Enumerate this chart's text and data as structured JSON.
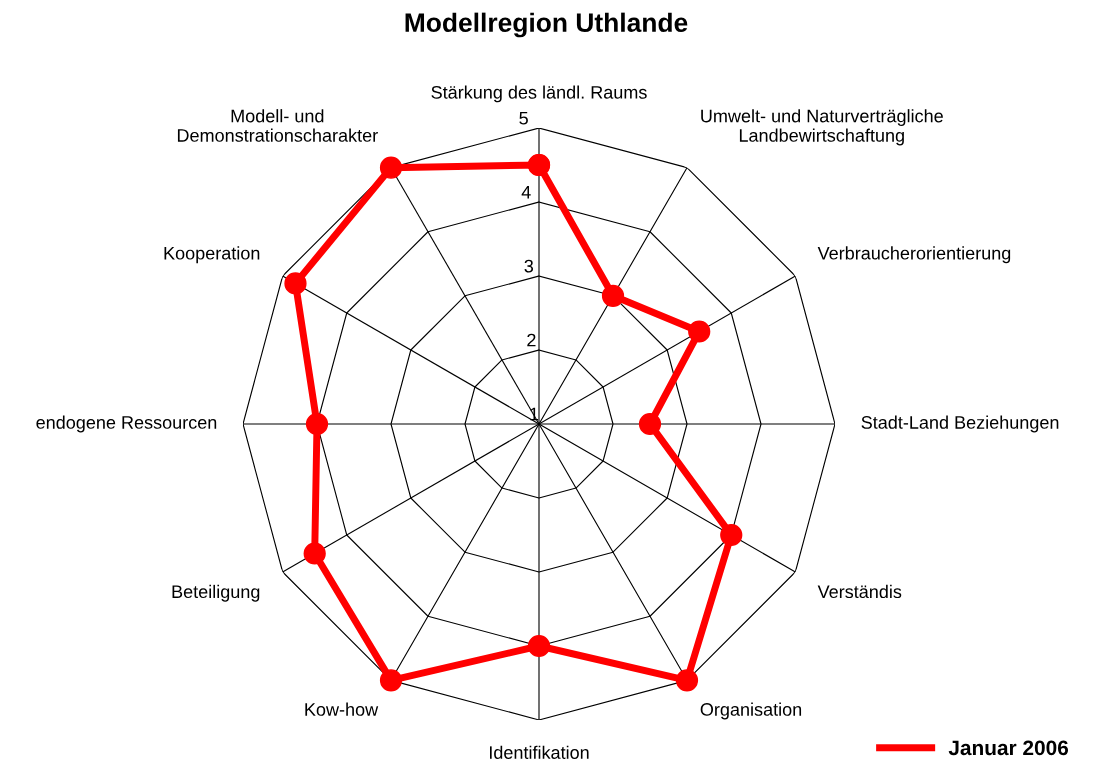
{
  "chart_data": {
    "type": "radar",
    "title": "Modellregion Uthlande",
    "categories": [
      "Stärkung des ländl. Raums",
      "Umwelt- und Naturverträgliche\nLandbewirtschaftung",
      "Verbraucherorientierung",
      "Stadt-Land Beziehungen",
      "Verständis",
      "Organisation",
      "Identifikation",
      "Kow-how",
      "Beteiligung",
      "endogene Ressourcen",
      "Kooperation",
      "Modell- und\nDemonstrationscharakter"
    ],
    "series": [
      {
        "name": "Januar 2006",
        "color": "#ff0000",
        "values": [
          4.5,
          3.0,
          3.5,
          2.5,
          4.0,
          5.0,
          4.0,
          5.0,
          4.5,
          4.0,
          4.8,
          5.0
        ]
      }
    ],
    "ylim": [
      1,
      5
    ],
    "yticks": [
      1,
      2,
      3,
      4,
      5
    ],
    "grid": true,
    "legend": "bottom right",
    "marker": "circle",
    "line_style": "solid"
  }
}
